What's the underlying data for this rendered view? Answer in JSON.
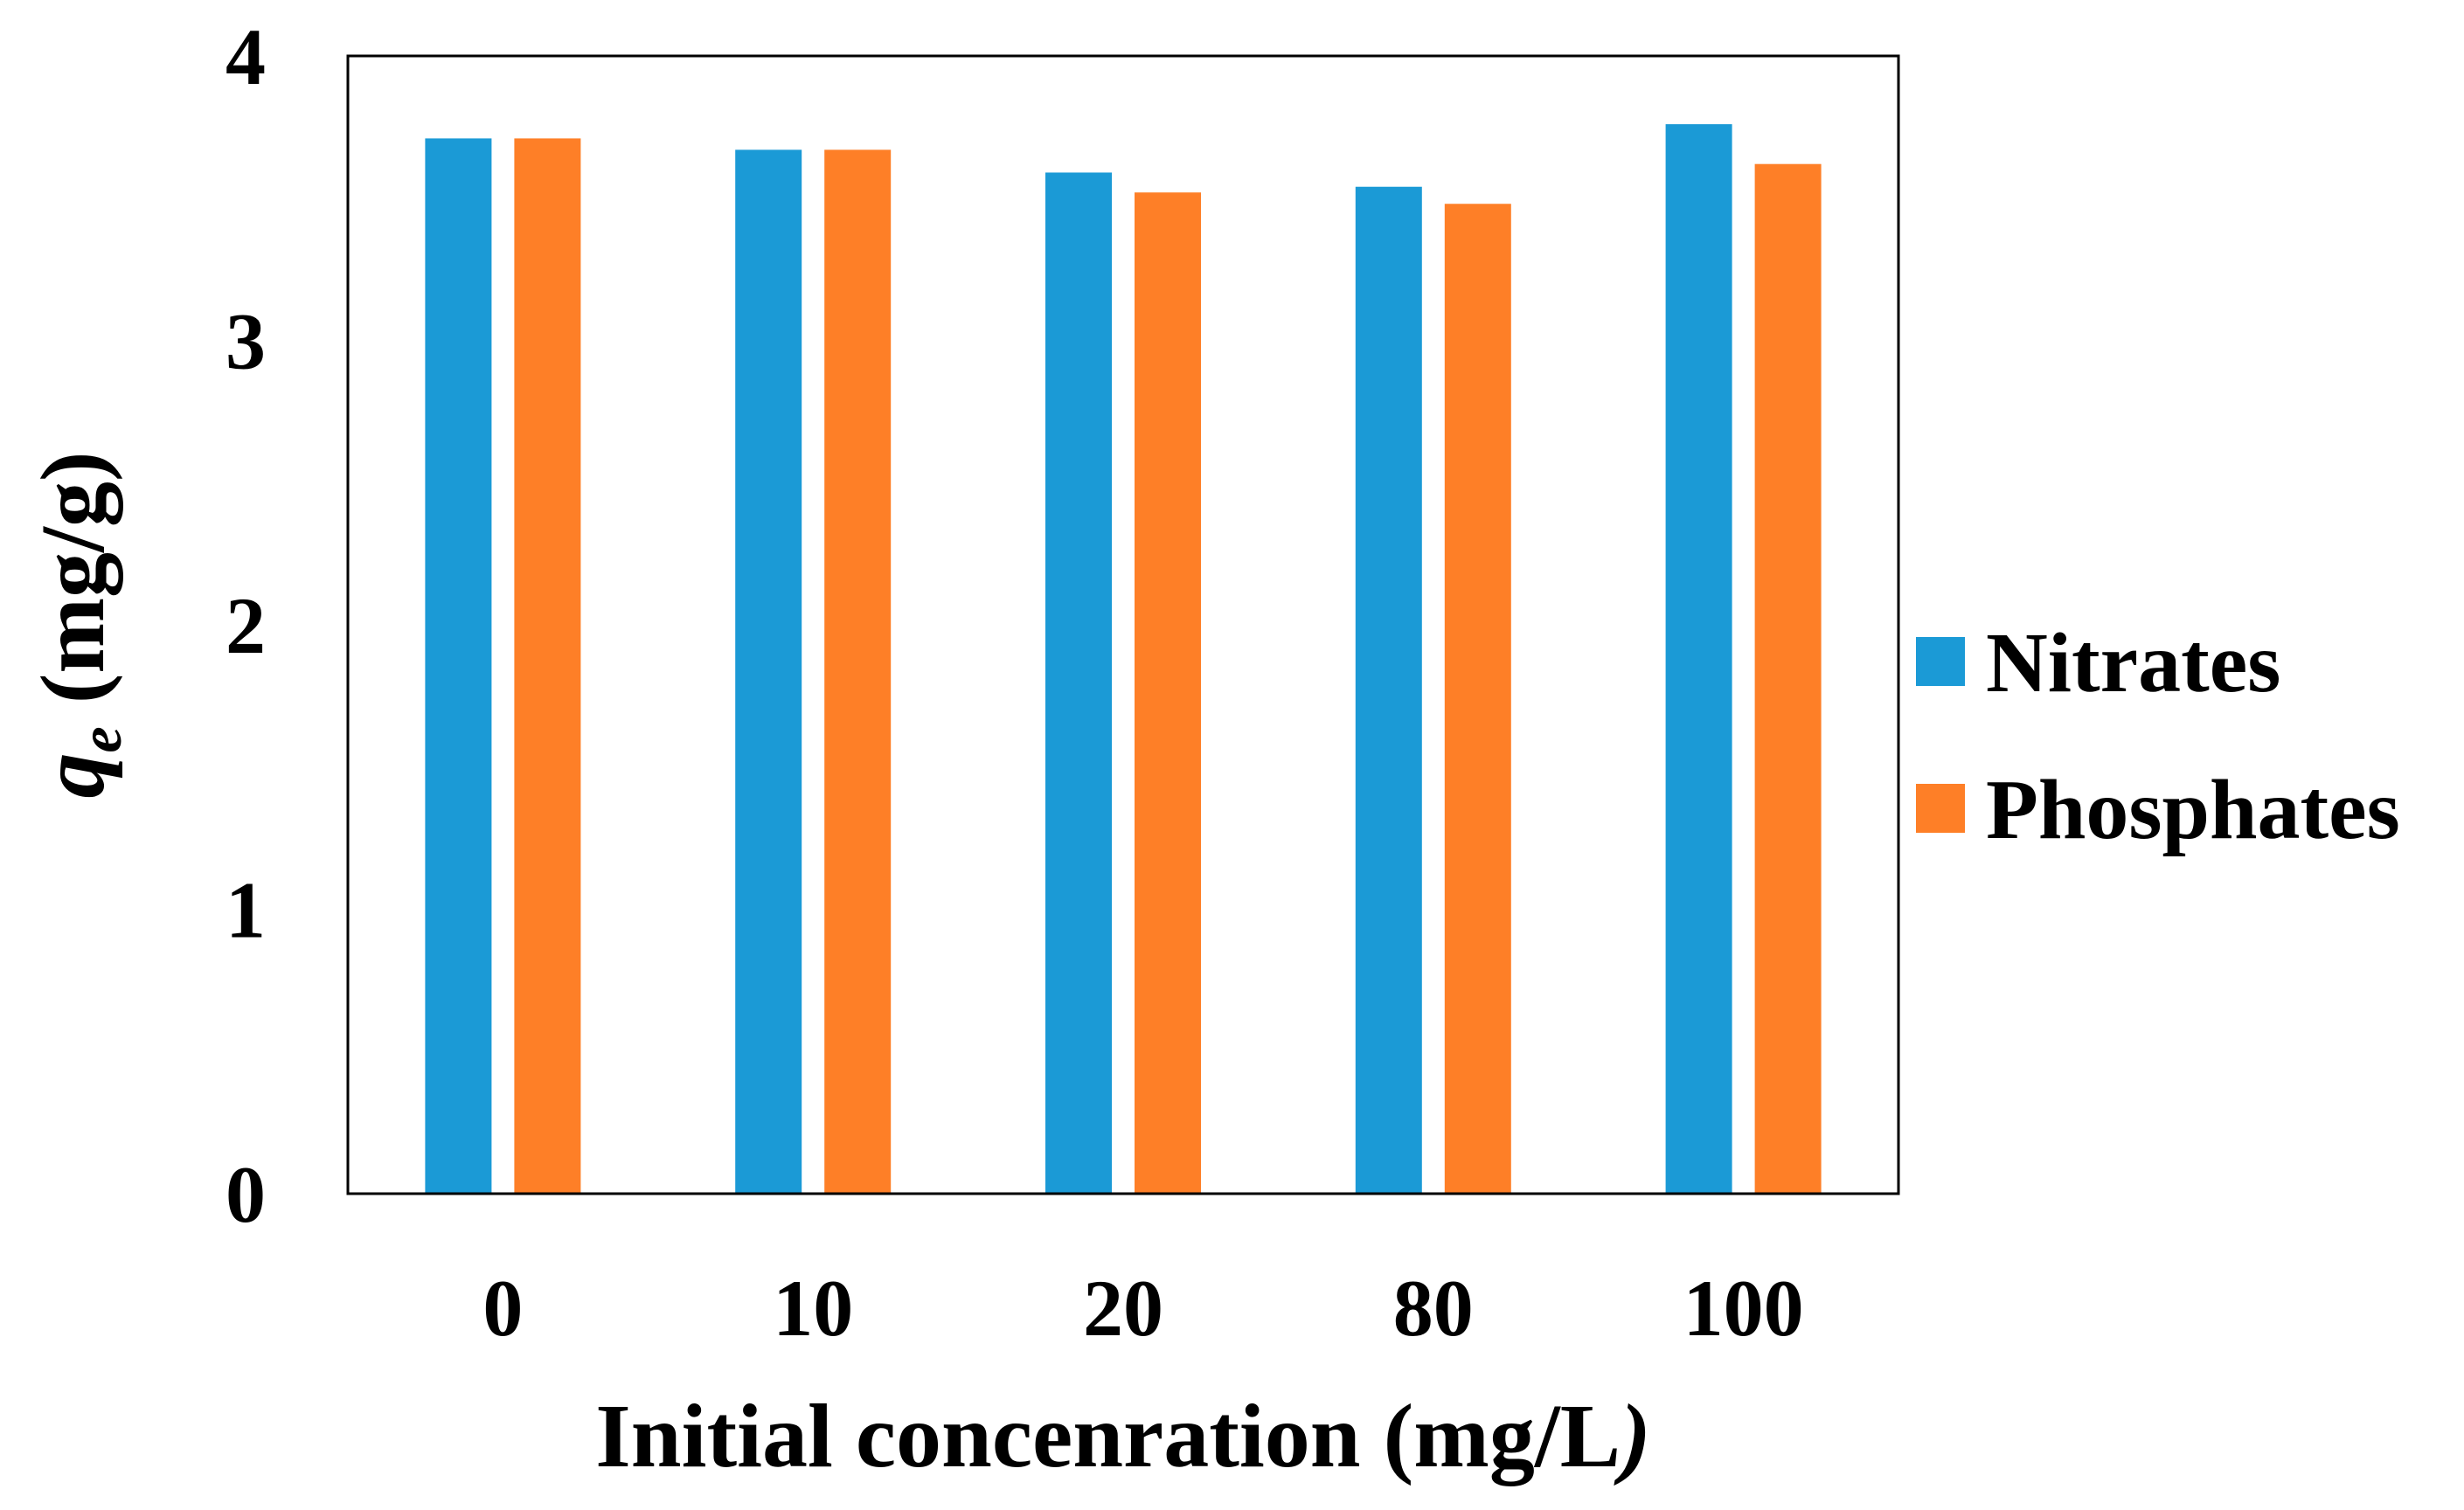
{
  "chart_data": {
    "type": "bar",
    "categories": [
      "0",
      "10",
      "20",
      "80",
      "100"
    ],
    "series": [
      {
        "name": "Nitrates",
        "color": "#1b9ad6",
        "values": [
          3.71,
          3.67,
          3.59,
          3.54,
          3.76
        ]
      },
      {
        "name": "Phosphates",
        "color": "#fe7f27",
        "values": [
          3.71,
          3.67,
          3.52,
          3.48,
          3.62
        ]
      }
    ],
    "ylim": [
      0,
      4
    ],
    "yticks": [
      "0",
      "1",
      "2",
      "3",
      "4"
    ],
    "ylabel_symbol": "q",
    "ylabel_subscript": "e",
    "ylabel_unit": " (mg/g)",
    "xlabel_main": "Initial concenration  (mg/L",
    "xlabel_end": ")",
    "legend_position": "right"
  }
}
